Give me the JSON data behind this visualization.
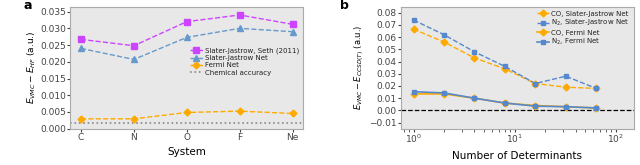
{
  "panel_a": {
    "systems": [
      "C",
      "N",
      "O",
      "F",
      "Ne"
    ],
    "slater_jastrow_seth": [
      0.0267,
      0.0248,
      0.032,
      0.034,
      0.0312
    ],
    "slater_jastrow_net": [
      0.024,
      0.0207,
      0.0273,
      0.03,
      0.029
    ],
    "fermi_net": [
      0.00295,
      0.00295,
      0.00485,
      0.00525,
      0.00455
    ],
    "chemical_accuracy": 0.00159,
    "ylim": [
      0.0,
      0.0365
    ],
    "yticks": [
      0.0,
      0.005,
      0.01,
      0.015,
      0.02,
      0.025,
      0.03,
      0.035
    ],
    "xlabel": "System",
    "color_seth": "#cc44ff",
    "color_sjnet": "#6699cc",
    "color_fermi": "#ffaa00",
    "color_chem": "#888888",
    "bg_color": "#e8e8e8"
  },
  "panel_b": {
    "x": [
      1,
      2,
      4,
      8,
      16,
      32,
      64
    ],
    "co_slater_jastrow": [
      0.0665,
      0.056,
      0.043,
      0.034,
      0.022,
      0.019,
      0.018
    ],
    "n2_slater_jastrow": [
      0.074,
      0.062,
      0.048,
      0.036,
      0.022,
      0.028,
      0.018
    ],
    "co_fermi_net": [
      0.0135,
      0.0135,
      0.01,
      0.006,
      0.004,
      0.003,
      0.002
    ],
    "n2_fermi_net": [
      0.0153,
      0.0143,
      0.01,
      0.006,
      0.0035,
      0.003,
      0.002
    ],
    "ylim": [
      -0.015,
      0.085
    ],
    "yticks": [
      -0.01,
      0.0,
      0.01,
      0.02,
      0.03,
      0.04,
      0.05,
      0.06,
      0.07,
      0.08
    ],
    "xlabel": "Number of Determinants",
    "color_co": "#ffaa00",
    "color_n2": "#5588cc",
    "zero_line": 0.0,
    "bg_color": "#e8e8e8"
  }
}
